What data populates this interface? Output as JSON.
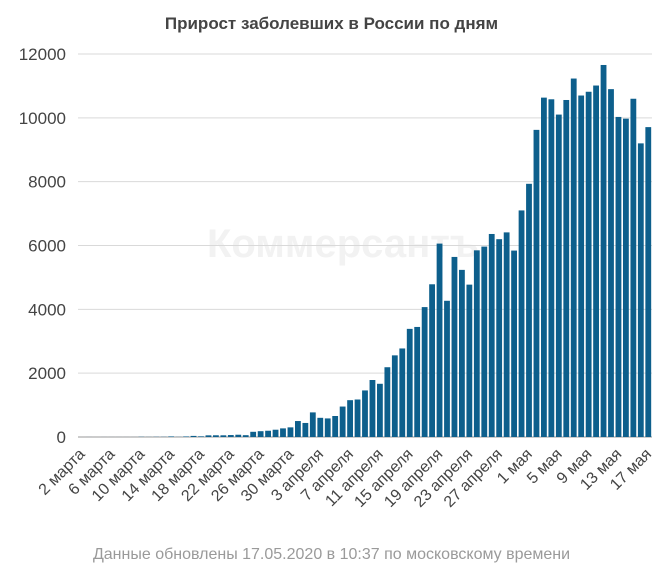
{
  "chart_data": {
    "type": "bar",
    "title": "Прирост заболевших в России по дням",
    "footnote": "Данные обновлены 17.05.2020 в 10:37 по московскому времени",
    "watermark": "Коммерсантъ",
    "color": "#0d5f8c",
    "xlabel": "",
    "ylabel": "",
    "ylim": [
      0,
      12000
    ],
    "yticks": [
      0,
      2000,
      4000,
      6000,
      8000,
      10000,
      12000
    ],
    "grid": true,
    "categories": [
      "2 марта",
      "3 марта",
      "4 марта",
      "5 марта",
      "6 марта",
      "7 марта",
      "8 марта",
      "9 марта",
      "10 марта",
      "11 марта",
      "12 марта",
      "13 марта",
      "14 марта",
      "15 марта",
      "16 марта",
      "17 марта",
      "18 марта",
      "19 марта",
      "20 марта",
      "21 марта",
      "22 марта",
      "23 марта",
      "24 марта",
      "25 марта",
      "26 марта",
      "27 марта",
      "28 марта",
      "29 марта",
      "30 марта",
      "31 марта",
      "1 апреля",
      "2 апреля",
      "3 апреля",
      "4 апреля",
      "5 апреля",
      "6 апреля",
      "7 апреля",
      "8 апреля",
      "9 апреля",
      "10 апреля",
      "11 апреля",
      "12 апреля",
      "13 апреля",
      "14 апреля",
      "15 апреля",
      "16 апреля",
      "17 апреля",
      "18 апреля",
      "19 апреля",
      "20 апреля",
      "21 апреля",
      "22 апреля",
      "23 апреля",
      "24 апреля",
      "25 апреля",
      "26 апреля",
      "27 апреля",
      "28 апреля",
      "29 апреля",
      "30 апреля",
      "1 мая",
      "2 мая",
      "3 мая",
      "4 мая",
      "5 мая",
      "6 мая",
      "7 мая",
      "8 мая",
      "9 мая",
      "10 мая",
      "11 мая",
      "12 мая",
      "13 мая",
      "14 мая",
      "15 мая",
      "16 мая",
      "17 мая"
    ],
    "tick_labels": [
      "2 марта",
      "6 марта",
      "10 марта",
      "14 марта",
      "18 марта",
      "22 марта",
      "26 марта",
      "30 марта",
      "3 апреля",
      "7 апреля",
      "11 апреля",
      "15 апреля",
      "19 апреля",
      "23 апреля",
      "27 апреля",
      "1 мая",
      "5 мая",
      "9 мая",
      "13 мая",
      "17 мая"
    ],
    "values": [
      0,
      1,
      0,
      1,
      1,
      1,
      1,
      1,
      7,
      3,
      6,
      6,
      18,
      4,
      17,
      34,
      21,
      52,
      54,
      53,
      61,
      71,
      57,
      163,
      182,
      196,
      228,
      270,
      302,
      500,
      440,
      771,
      601,
      582,
      658,
      954,
      1154,
      1175,
      1459,
      1786,
      1667,
      2186,
      2558,
      2774,
      3388,
      3448,
      4070,
      4785,
      6060,
      4268,
      5642,
      5236,
      4774,
      5849,
      5966,
      6361,
      6198,
      6411,
      5841,
      7099,
      7933,
      9623,
      10633,
      10581,
      10102,
      10559,
      11231,
      10699,
      10817,
      11012,
      11656,
      10899,
      10028,
      9974,
      10598,
      9200,
      9709
    ]
  }
}
